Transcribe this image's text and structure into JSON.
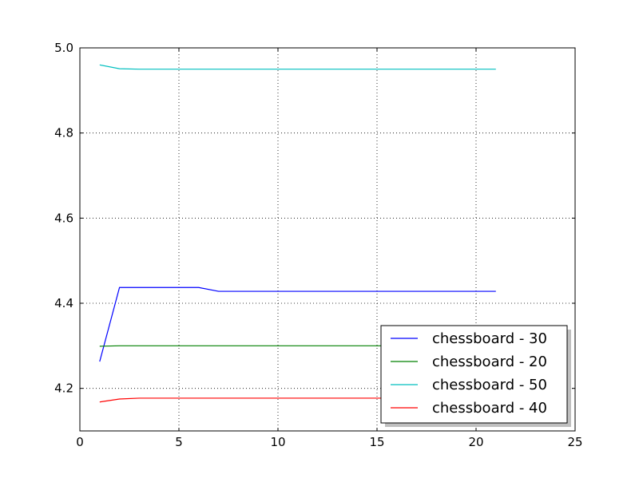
{
  "chart_data": {
    "type": "line",
    "title": "",
    "xlabel": "",
    "ylabel": "",
    "xlim": [
      0,
      25
    ],
    "ylim": [
      4.1,
      5.0
    ],
    "xticks": [
      0,
      5,
      10,
      15,
      20,
      25
    ],
    "xtick_labels": [
      "0",
      "5",
      "10",
      "15",
      "20",
      "25"
    ],
    "yticks": [
      4.2,
      4.4,
      4.6,
      4.8,
      5.0
    ],
    "ytick_labels": [
      "4.2",
      "4.4",
      "4.6",
      "4.8",
      "5.0"
    ],
    "grid": true,
    "legend_position": "lower-right",
    "x": [
      1,
      2,
      3,
      4,
      5,
      6,
      7,
      8,
      9,
      10,
      11,
      12,
      13,
      14,
      15,
      16,
      17,
      18,
      19,
      20,
      21
    ],
    "series": [
      {
        "name": "chessboard - 30",
        "color": "#0000ff",
        "values": [
          4.263,
          4.437,
          4.437,
          4.437,
          4.437,
          4.437,
          4.428,
          4.428,
          4.428,
          4.428,
          4.428,
          4.428,
          4.428,
          4.428,
          4.428,
          4.428,
          4.428,
          4.428,
          4.428,
          4.428,
          4.428
        ]
      },
      {
        "name": "chessboard - 20",
        "color": "#008000",
        "values": [
          4.299,
          4.3,
          4.3,
          4.3,
          4.3,
          4.3,
          4.3,
          4.3,
          4.3,
          4.3,
          4.3,
          4.3,
          4.3,
          4.3,
          4.3,
          4.3,
          4.3,
          4.3,
          4.3,
          4.3,
          4.3
        ]
      },
      {
        "name": "chessboard - 50",
        "color": "#00bfbf",
        "values": [
          4.96,
          4.951,
          4.95,
          4.95,
          4.95,
          4.95,
          4.95,
          4.95,
          4.95,
          4.95,
          4.95,
          4.95,
          4.95,
          4.95,
          4.95,
          4.95,
          4.95,
          4.95,
          4.95,
          4.95,
          4.95
        ]
      },
      {
        "name": "chessboard - 40",
        "color": "#ff0000",
        "values": [
          4.168,
          4.175,
          4.177,
          4.177,
          4.177,
          4.177,
          4.177,
          4.177,
          4.177,
          4.177,
          4.177,
          4.177,
          4.177,
          4.177,
          4.177,
          4.177,
          4.177,
          4.177,
          4.177,
          4.177,
          4.177
        ]
      }
    ]
  }
}
